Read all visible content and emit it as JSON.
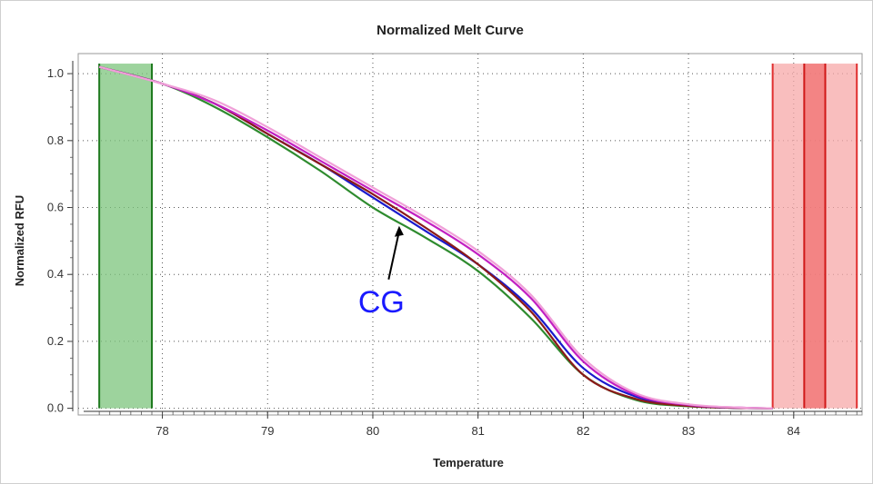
{
  "chart_data": {
    "type": "line",
    "title": "Normalized Melt Curve",
    "xlabel": "Temperature",
    "ylabel": "Normalized RFU",
    "xlim": [
      77.2,
      84.65
    ],
    "ylim": [
      -0.02,
      1.06
    ],
    "x_ticks": [
      78,
      79,
      80,
      81,
      82,
      83,
      84
    ],
    "y_ticks": [
      0.0,
      0.2,
      0.4,
      0.6,
      0.8,
      1.0
    ],
    "x_tick_labels": [
      "78",
      "79",
      "80",
      "81",
      "82",
      "83",
      "84"
    ],
    "y_tick_labels": [
      "0.0",
      "0.2",
      "0.4",
      "0.6",
      "0.8",
      "1.0"
    ],
    "grid": true,
    "regions": [
      {
        "x0": 77.4,
        "x1": 77.9,
        "color": "#7cc47c",
        "edge": "#1f7a1f"
      },
      {
        "x0": 83.8,
        "x1": 84.6,
        "color": "#f7a8a8",
        "edge": "#e03030"
      },
      {
        "x0": 84.1,
        "x1": 84.3,
        "color": "#f07070",
        "edge": "#d01818"
      }
    ],
    "series": [
      {
        "color": "#2e8b2e",
        "x": [
          77.4,
          78.0,
          78.5,
          79.0,
          79.5,
          80.0,
          80.5,
          81.0,
          81.5,
          82.0,
          82.5,
          83.0,
          83.5,
          83.8
        ],
        "y": [
          1.02,
          0.97,
          0.9,
          0.81,
          0.71,
          0.6,
          0.51,
          0.41,
          0.27,
          0.1,
          0.025,
          0.006,
          0.001,
          0.0
        ]
      },
      {
        "color": "#1a1acc",
        "x": [
          77.4,
          78.0,
          78.5,
          79.0,
          79.5,
          80.0,
          80.5,
          81.0,
          81.5,
          82.0,
          82.5,
          83.0,
          83.5,
          83.8
        ],
        "y": [
          1.02,
          0.97,
          0.91,
          0.82,
          0.73,
          0.63,
          0.53,
          0.43,
          0.3,
          0.12,
          0.035,
          0.008,
          0.001,
          0.0
        ]
      },
      {
        "color": "#8b1a1a",
        "x": [
          77.4,
          78.0,
          78.5,
          79.0,
          79.5,
          80.0,
          80.5,
          81.0,
          81.5,
          82.0,
          82.5,
          83.0,
          83.5,
          83.8
        ],
        "y": [
          1.02,
          0.97,
          0.91,
          0.82,
          0.73,
          0.64,
          0.54,
          0.43,
          0.29,
          0.1,
          0.028,
          0.007,
          0.001,
          0.0
        ]
      },
      {
        "color": "#c21fc2",
        "x": [
          77.4,
          78.0,
          78.5,
          79.0,
          79.5,
          80.0,
          80.5,
          81.0,
          81.5,
          82.0,
          82.5,
          83.0,
          83.5,
          83.8
        ],
        "y": [
          1.02,
          0.97,
          0.91,
          0.83,
          0.74,
          0.65,
          0.56,
          0.46,
          0.33,
          0.14,
          0.04,
          0.01,
          0.002,
          0.0
        ]
      },
      {
        "color": "#f0a0d8",
        "x": [
          77.4,
          78.0,
          78.5,
          79.0,
          79.5,
          80.0,
          80.5,
          81.0,
          81.5,
          82.0,
          82.5,
          83.0,
          83.5,
          83.8
        ],
        "y": [
          1.02,
          0.97,
          0.92,
          0.84,
          0.75,
          0.66,
          0.57,
          0.47,
          0.34,
          0.15,
          0.045,
          0.012,
          0.002,
          0.0
        ]
      }
    ],
    "annotation": {
      "text": "CG",
      "color": "#1a1aff",
      "arrow_tip": {
        "x": 80.25,
        "y": 0.545
      },
      "arrow_tail": {
        "x": 80.15,
        "y": 0.385
      }
    }
  }
}
